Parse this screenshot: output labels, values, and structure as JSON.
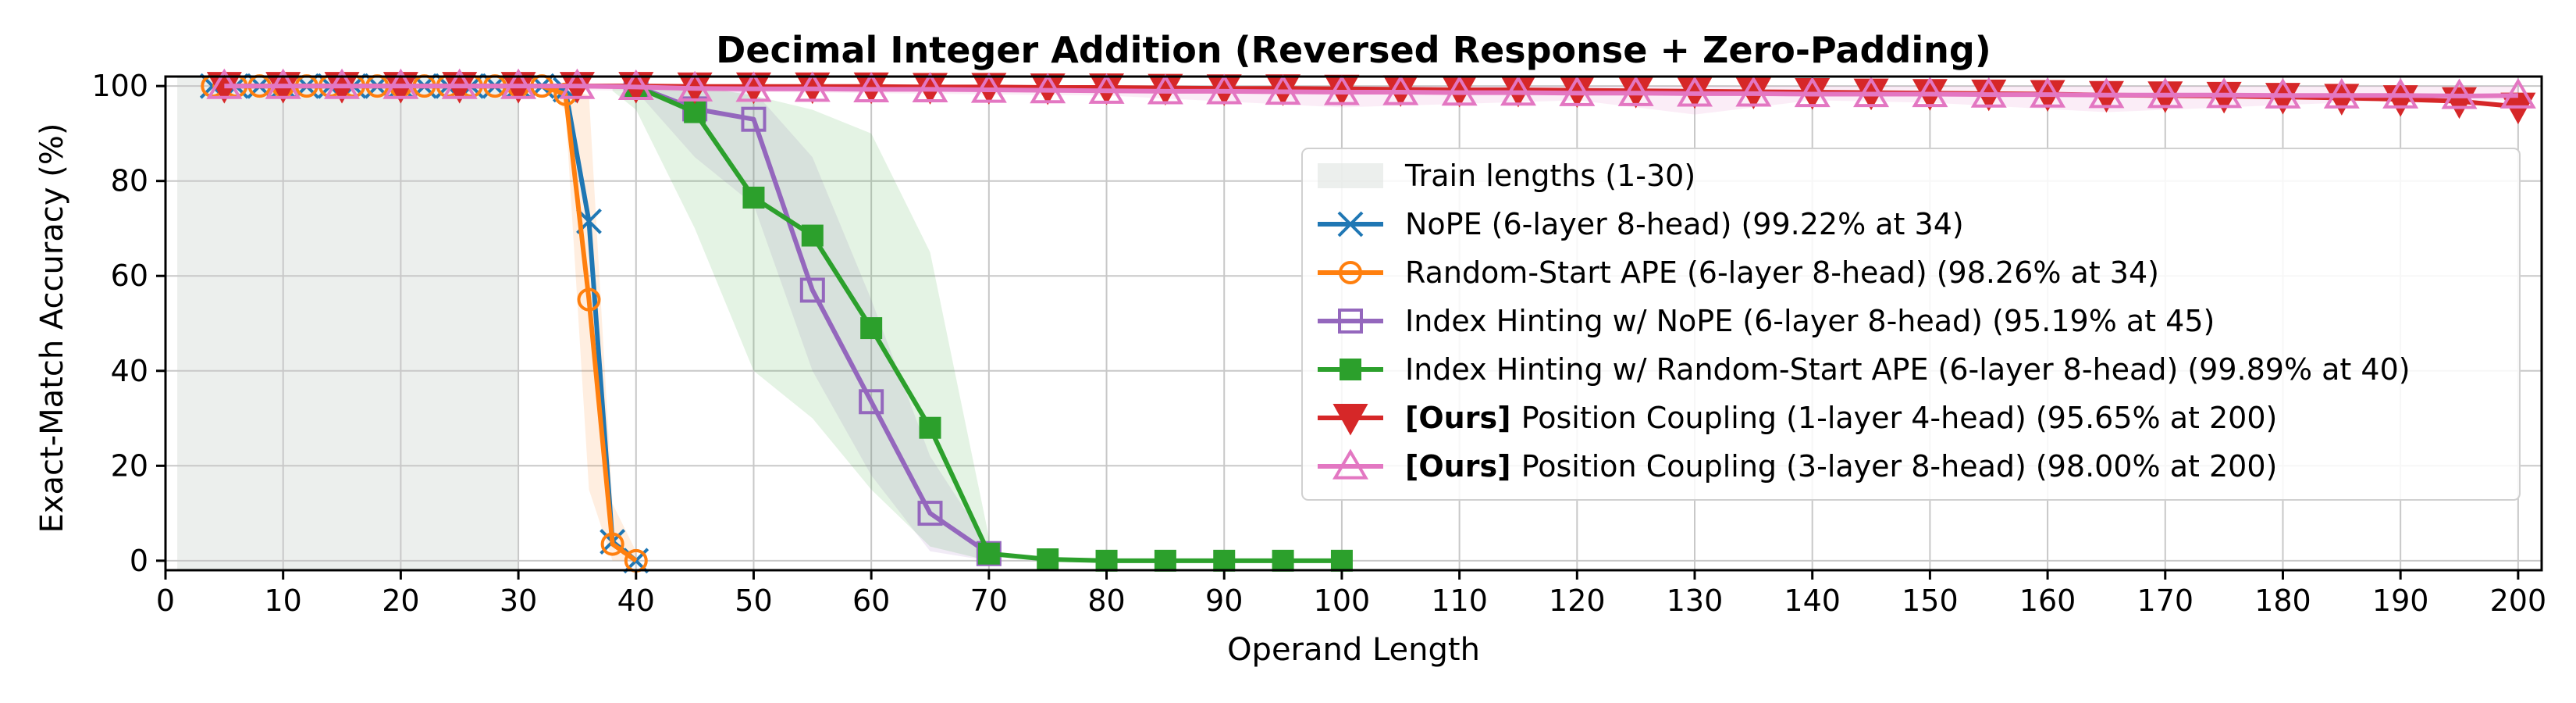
{
  "chart_data": {
    "type": "line",
    "title": "Decimal Integer Addition (Reversed Response + Zero-Padding)",
    "xlabel": "Operand Length",
    "ylabel": "Exact-Match Accuracy (%)",
    "xlim": [
      0,
      202
    ],
    "ylim": [
      -2,
      102
    ],
    "xticks": [
      0,
      10,
      20,
      30,
      40,
      50,
      60,
      70,
      80,
      90,
      100,
      110,
      120,
      130,
      140,
      150,
      160,
      170,
      180,
      190,
      200
    ],
    "yticks": [
      0,
      20,
      40,
      60,
      80,
      100
    ],
    "grid": true,
    "legend_position": "center-right",
    "train_region": {
      "label": "Train lengths (1-30)",
      "x_range": [
        1,
        30
      ],
      "color": "#dfe4e1"
    },
    "series": [
      {
        "name": "NoPE (6-layer 8-head) (99.22% at 34)",
        "color": "#1f77b4",
        "marker": "x",
        "x": [
          4,
          6,
          8,
          10,
          12,
          14,
          16,
          18,
          20,
          22,
          24,
          26,
          28,
          30,
          32,
          34,
          36,
          38,
          40
        ],
        "y": [
          100,
          100,
          100,
          100,
          100,
          100,
          100,
          100,
          100,
          100,
          100,
          100,
          100,
          100,
          100,
          99.22,
          71.5,
          4,
          0
        ],
        "band": null
      },
      {
        "name": "Random-Start APE (6-layer 8-head) (98.26% at 34)",
        "color": "#ff7f0e",
        "marker": "circle",
        "x": [
          4,
          6,
          8,
          10,
          12,
          14,
          16,
          18,
          20,
          22,
          24,
          26,
          28,
          30,
          32,
          34,
          36,
          38,
          40
        ],
        "y": [
          100,
          100,
          100,
          100,
          100,
          100,
          100,
          100,
          100,
          100,
          100,
          100,
          100,
          100,
          100,
          98.26,
          55,
          3.5,
          0
        ],
        "band": {
          "x": [
            32,
            34,
            36,
            38,
            40
          ],
          "lo": [
            100,
            95,
            15,
            0,
            0
          ],
          "hi": [
            100,
            100,
            98,
            12,
            2
          ]
        }
      },
      {
        "name": "Index Hinting w/ NoPE (6-layer 8-head) (95.19% at 45)",
        "color": "#9467bd",
        "marker": "square-open",
        "x": [
          40,
          45,
          50,
          55,
          60,
          65,
          70
        ],
        "y": [
          100,
          95.19,
          93,
          57,
          33.5,
          10,
          1.5
        ],
        "band": {
          "x": [
            40,
            45,
            50,
            55,
            60,
            65,
            70
          ],
          "lo": [
            99,
            85,
            75,
            40,
            18,
            2,
            0
          ],
          "hi": [
            100,
            99,
            99,
            85,
            55,
            22,
            3
          ]
        }
      },
      {
        "name": "Index Hinting w/ Random-Start APE (6-layer 8-head) (99.89% at 40)",
        "color": "#2ca02c",
        "marker": "square",
        "x": [
          40,
          45,
          50,
          55,
          60,
          65,
          70,
          75,
          80,
          85,
          90,
          95,
          100
        ],
        "y": [
          99.89,
          94.5,
          76.5,
          68.5,
          49,
          28,
          1.5,
          0.3,
          0,
          0,
          0,
          0,
          0
        ],
        "band": {
          "x": [
            38,
            40,
            45,
            50,
            55,
            60,
            65,
            70
          ],
          "lo": [
            99,
            95,
            70,
            40,
            30,
            15,
            3,
            0
          ],
          "hi": [
            100,
            100,
            100,
            98,
            95,
            90,
            65,
            5
          ]
        }
      },
      {
        "name": "Position Coupling (1-layer 4-head) (95.65% at 200)",
        "bold_prefix": "[Ours]",
        "color": "#d62728",
        "marker": "triangle-down",
        "x": [
          5,
          10,
          15,
          20,
          25,
          30,
          35,
          40,
          45,
          50,
          55,
          60,
          65,
          70,
          75,
          80,
          85,
          90,
          95,
          100,
          105,
          110,
          115,
          120,
          125,
          130,
          135,
          140,
          145,
          150,
          155,
          160,
          165,
          170,
          175,
          180,
          185,
          190,
          195,
          200
        ],
        "y": [
          100,
          100,
          100,
          100,
          100,
          100,
          100,
          100,
          99.9,
          99.9,
          99.9,
          99.9,
          99.8,
          99.8,
          99.7,
          99.7,
          99.6,
          99.5,
          99.5,
          99.4,
          99.3,
          99.2,
          99.2,
          99.1,
          99,
          98.9,
          98.8,
          98.7,
          98.6,
          98.5,
          98.4,
          98.3,
          98.1,
          98,
          97.9,
          97.7,
          97.5,
          97.2,
          96.8,
          95.65
        ],
        "band": null
      },
      {
        "name": "Position Coupling (3-layer 8-head) (98.00% at 200)",
        "bold_prefix": "[Ours]",
        "color": "#e377c2",
        "marker": "triangle-up-open",
        "x": [
          5,
          10,
          15,
          20,
          25,
          30,
          35,
          40,
          45,
          50,
          55,
          60,
          65,
          70,
          75,
          80,
          85,
          90,
          95,
          100,
          105,
          110,
          115,
          120,
          125,
          130,
          135,
          140,
          145,
          150,
          155,
          160,
          165,
          170,
          175,
          180,
          185,
          190,
          195,
          200
        ],
        "y": [
          100,
          100,
          100,
          100,
          100,
          100,
          100,
          99.8,
          99.5,
          99.4,
          99.4,
          99.3,
          99.3,
          99.2,
          99.1,
          99,
          98.9,
          98.9,
          98.8,
          98.7,
          98.7,
          98.6,
          98.6,
          98.5,
          98.5,
          98.4,
          98.4,
          98.3,
          98.3,
          98.3,
          98.2,
          98.2,
          98.1,
          98.1,
          98.1,
          98,
          98,
          98,
          97.9,
          98
        ],
        "band": {
          "x": [
            5,
            40,
            80,
            100,
            120,
            130,
            140,
            150,
            165,
            180,
            190,
            200
          ],
          "lo": [
            100,
            99,
            98,
            95.5,
            97,
            94,
            97,
            96.5,
            94.5,
            96,
            97,
            97
          ],
          "hi": [
            100,
            100,
            100,
            100,
            100,
            100,
            100,
            100,
            100,
            100,
            100,
            100
          ]
        }
      }
    ]
  }
}
